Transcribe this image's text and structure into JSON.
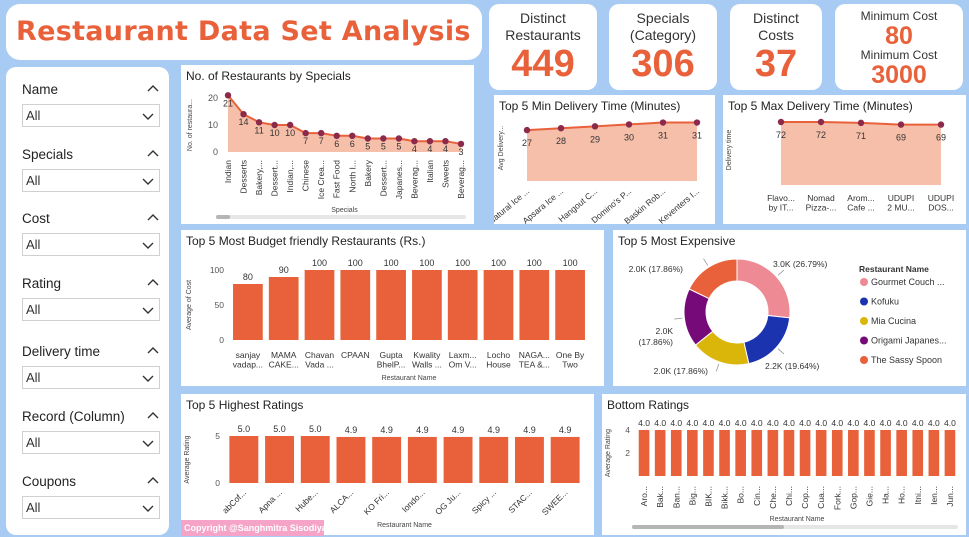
{
  "title": "Restaurant Data Set Analysis",
  "kpis": {
    "distinct_restaurants": {
      "label_1": "Distinct",
      "label_2": "Restaurants",
      "value": "449"
    },
    "specials": {
      "label_1": "Specials",
      "label_2": "(Category)",
      "value": "306"
    },
    "distinct_costs": {
      "label_1": "Distinct",
      "label_2": "Costs",
      "value": "37"
    },
    "min_cost": {
      "label": "Minimum Cost",
      "value": "80"
    },
    "max_cost": {
      "label": "Minimum Cost",
      "value": "3000"
    }
  },
  "filters": [
    {
      "label": "Name",
      "value": "All"
    },
    {
      "label": "Specials",
      "value": "All"
    },
    {
      "label": "Cost",
      "value": "All"
    },
    {
      "label": "Rating",
      "value": "All"
    },
    {
      "label": "Delivery time",
      "value": "All"
    },
    {
      "label": "Record (Column)",
      "value": "All"
    },
    {
      "label": "Coupons",
      "value": "All"
    }
  ],
  "colors": {
    "accent": "#e8613a",
    "area": "#f4b49b",
    "line_dot": "#8b2a4a",
    "background": "#a8cbf3"
  },
  "copyright": "Copyright @Sanghmitra Sisodiya",
  "chart_data": [
    {
      "id": "specials",
      "type": "area",
      "title": "No. of Restaurants by Specials",
      "xlabel": "Specials",
      "ylabel": "No. of restaura...",
      "ylim": [
        0,
        20
      ],
      "yticks": [
        "0",
        "10",
        "20"
      ],
      "categories": [
        "Indian",
        "Desserts",
        "Bakery,...",
        "Dessert...",
        "Indian,...",
        "Chinese",
        "Ice Crea...",
        "Fast Food",
        "North I...",
        "Bakery",
        "Dessert...",
        "Japanes...",
        "Beverag...",
        "Italian",
        "Sweets",
        "Beverag..."
      ],
      "values": [
        21,
        14,
        11,
        10,
        10,
        7,
        7,
        6,
        6,
        5,
        5,
        5,
        4,
        4,
        4,
        3
      ],
      "labels": [
        "21",
        "14",
        "11",
        "10",
        "10",
        "7",
        "7",
        "6",
        "6",
        "5",
        "5",
        "5",
        "4",
        "4",
        "4",
        "3"
      ]
    },
    {
      "id": "min_delivery",
      "type": "area",
      "title": "Top 5 Min Delivery Time (Minutes)",
      "ylabel": "Avg Delivery...",
      "ylim": [
        0,
        35
      ],
      "categories": [
        "Natural Ice ...",
        "Apsara Ice ...",
        "Hangout C...",
        "Domino's P...",
        "Baskin Rob...",
        "Keventers I..."
      ],
      "values": [
        27,
        28,
        29,
        30,
        31,
        31
      ],
      "labels": [
        "27",
        "28",
        "29",
        "30",
        "31",
        "31"
      ]
    },
    {
      "id": "max_delivery",
      "type": "area",
      "title": "Top 5 Max Delivery Time (Minutes)",
      "ylabel": "Delivery time",
      "ylim": [
        0,
        80
      ],
      "categories": [
        [
          "Flavo...",
          "by IT..."
        ],
        [
          "Nomad",
          "Pizza-..."
        ],
        [
          "Arom...",
          "Cafe ..."
        ],
        [
          "UDUPI",
          "2 MU..."
        ],
        [
          "UDUPI",
          "DOS..."
        ]
      ],
      "values": [
        72,
        72,
        71,
        69,
        69
      ],
      "labels": [
        "72",
        "72",
        "71",
        "69",
        "69"
      ]
    },
    {
      "id": "budget",
      "type": "bar",
      "title": "Top 5 Most Budget friendly Restaurants (Rs.)",
      "xlabel": "Restaurant Name",
      "ylabel": "Average of Cost",
      "ylim": [
        0,
        100
      ],
      "yticks": [
        "0",
        "50",
        "100"
      ],
      "categories": [
        [
          "sanjay",
          "vadap..."
        ],
        [
          "MAMA",
          "CAKE..."
        ],
        [
          "Chavan",
          "Vada ..."
        ],
        [
          "CPAAN"
        ],
        [
          "Gupta",
          "BhelP..."
        ],
        [
          "Kwality",
          "Walls ..."
        ],
        [
          "Laxm...",
          "Om V..."
        ],
        [
          "Locho",
          "House"
        ],
        [
          "NAGA...",
          "TEA &..."
        ],
        [
          "One By",
          "Two"
        ]
      ],
      "values": [
        80,
        90,
        100,
        100,
        100,
        100,
        100,
        100,
        100,
        100
      ],
      "labels": [
        "80",
        "90",
        "100",
        "100",
        "100",
        "100",
        "100",
        "100",
        "100",
        "100"
      ]
    },
    {
      "id": "expensive",
      "type": "pie",
      "title": "Top 5 Most Expensive",
      "legend_title": "Restaurant Name",
      "legend": "right",
      "slices": [
        {
          "name": "Gourmet Couch ...",
          "value": 3000,
          "label": "3.0K (26.79%)",
          "color": "#ee8a93"
        },
        {
          "name": "Kofuku",
          "value": 2200,
          "label": "2.2K (19.64%)",
          "color": "#1c33b0"
        },
        {
          "name": "Mia Cucina",
          "value": 2000,
          "label": "2.0K (17.86%)",
          "color": "#dab60b"
        },
        {
          "name": "Origami Japanes...",
          "value": 2000,
          "label": [
            "2.0K",
            "(17.86%)"
          ],
          "color": "#760a78"
        },
        {
          "name": "The Sassy Spoon",
          "value": 2000,
          "label": "2.0K (17.86%)",
          "color": "#e8613a"
        }
      ]
    },
    {
      "id": "highest",
      "type": "bar",
      "title": "Top 5 Highest Ratings",
      "xlabel": "Restaurant Name",
      "ylabel": "Average Rating",
      "ylim": [
        0,
        5
      ],
      "yticks": [
        "0",
        "5"
      ],
      "categories": [
        "abCof...",
        "Apna ...",
        "Hube...",
        "ALCA...",
        "KO Fri...",
        "londo...",
        "OG Ju...",
        "Spicy ...",
        "STAC...",
        "SWEE..."
      ],
      "values": [
        5.0,
        5.0,
        5.0,
        4.9,
        4.9,
        4.9,
        4.9,
        4.9,
        4.9,
        4.9
      ],
      "labels": [
        "5.0",
        "5.0",
        "5.0",
        "4.9",
        "4.9",
        "4.9",
        "4.9",
        "4.9",
        "4.9",
        "4.9"
      ]
    },
    {
      "id": "bottom",
      "type": "bar",
      "title": "Bottom Ratings",
      "xlabel": "Restaurant Name",
      "ylabel": "Average Rating",
      "ylim": [
        0,
        4
      ],
      "yticks": [
        "2",
        "4"
      ],
      "categories": [
        "Aro...",
        "Bak...",
        "Ban...",
        "Big...",
        "BIK...",
        "Bikk...",
        "Bo...",
        "Cin...",
        "Che...",
        "Chi...",
        "Cop...",
        "Cua...",
        "Fork...",
        "Gop...",
        "Gie...",
        "Ha...",
        "Ho...",
        "Itni...",
        "Ien...",
        "Jun..."
      ],
      "values": [
        4.0,
        4.0,
        4.0,
        4.0,
        4.0,
        4.0,
        4.0,
        4.0,
        4.0,
        4.0,
        4.0,
        4.0,
        4.0,
        4.0,
        4.0,
        4.0,
        4.0,
        4.0,
        4.0,
        4.0
      ],
      "labels": [
        "4.0",
        "4.0",
        "4.0",
        "4.0",
        "4.0",
        "4.0",
        "4.0",
        "4.0",
        "4.0",
        "4.0",
        "4.0",
        "4.0",
        "4.0",
        "4.0",
        "4.0",
        "4.0",
        "4.0",
        "4.0",
        "4.0",
        "4.0"
      ]
    }
  ]
}
